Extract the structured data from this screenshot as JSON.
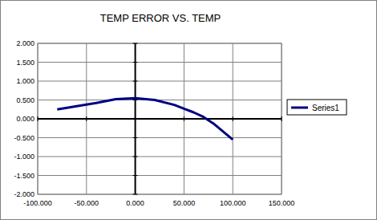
{
  "chart_data": {
    "type": "line",
    "title": "TEMP ERROR VS. TEMP",
    "x": [
      -80,
      -40,
      -20,
      0,
      20,
      40,
      50,
      60,
      70,
      80,
      100
    ],
    "series": [
      {
        "name": "Series1",
        "color": "#000080",
        "values": [
          0.25,
          0.42,
          0.52,
          0.55,
          0.5,
          0.37,
          0.27,
          0.17,
          0.05,
          -0.12,
          -0.55
        ]
      }
    ],
    "xlim": [
      -100,
      150
    ],
    "xticks": [
      {
        "value": -100,
        "label": "-100.000"
      },
      {
        "value": -50,
        "label": "-50.000"
      },
      {
        "value": 0,
        "label": "0.000"
      },
      {
        "value": 50,
        "label": "50.000"
      },
      {
        "value": 100,
        "label": "100.000"
      },
      {
        "value": 150,
        "label": "150.000"
      }
    ],
    "ylim": [
      -2,
      2
    ],
    "yticks": [
      {
        "value": -2,
        "label": "-2.000"
      },
      {
        "value": -1.5,
        "label": "-1.500"
      },
      {
        "value": -1,
        "label": "-1.000"
      },
      {
        "value": -0.5,
        "label": "-0.500"
      },
      {
        "value": 0,
        "label": "0.000"
      },
      {
        "value": 0.5,
        "label": "0.500"
      },
      {
        "value": 1,
        "label": "1.000"
      },
      {
        "value": 1.5,
        "label": "1.500"
      },
      {
        "value": 2,
        "label": "2.000"
      }
    ],
    "grid": true,
    "legend": "right"
  }
}
